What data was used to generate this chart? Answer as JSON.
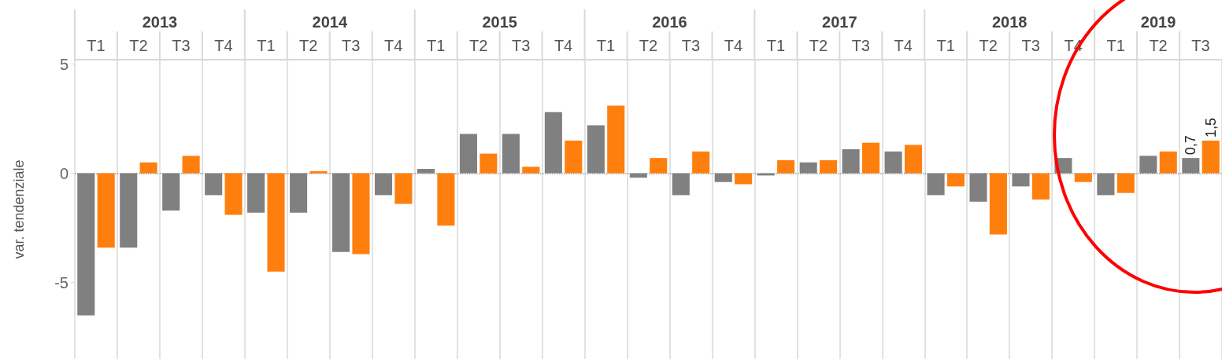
{
  "chart_data": {
    "type": "bar",
    "ylabel": "var. tendenziale",
    "categories": [
      "T1",
      "T2",
      "T3",
      "T4",
      "T1",
      "T2",
      "T3",
      "T4",
      "T1",
      "T2",
      "T3",
      "T4",
      "T1",
      "T2",
      "T3",
      "T4",
      "T1",
      "T2",
      "T3",
      "T4",
      "T1",
      "T2",
      "T3",
      "T4",
      "T1",
      "T2",
      "T3"
    ],
    "annotations": [
      "2013",
      "2014",
      "2015",
      "2016",
      "2017",
      "2018",
      "2019"
    ],
    "series": [
      {
        "color": "#808080",
        "values": [
          -6.5,
          -3.4,
          -1.7,
          -1.0,
          -1.8,
          -1.8,
          -3.6,
          -1.0,
          0.2,
          1.8,
          1.8,
          2.8,
          2.2,
          -0.2,
          -1.0,
          -0.4,
          -0.1,
          0.5,
          1.1,
          1.0,
          -1.0,
          -1.3,
          -0.6,
          0.7,
          -1.0,
          0.8,
          0.7
        ],
        "value_labels": [
          null,
          null,
          null,
          null,
          null,
          null,
          null,
          null,
          null,
          null,
          null,
          null,
          null,
          null,
          null,
          null,
          null,
          null,
          null,
          null,
          null,
          null,
          null,
          null,
          null,
          null,
          "0,7"
        ]
      },
      {
        "color": "#ff7f0e",
        "values": [
          -3.4,
          0.5,
          0.8,
          -1.9,
          -4.5,
          0.1,
          -3.7,
          -1.4,
          -2.4,
          0.9,
          0.3,
          1.5,
          3.1,
          0.7,
          1.0,
          -0.5,
          0.6,
          0.6,
          1.4,
          1.3,
          -0.6,
          -2.8,
          -1.2,
          -0.4,
          -0.9,
          1.0,
          1.5
        ],
        "value_labels": [
          null,
          null,
          null,
          null,
          null,
          null,
          null,
          null,
          null,
          null,
          null,
          null,
          null,
          null,
          null,
          null,
          null,
          null,
          null,
          null,
          null,
          null,
          null,
          null,
          null,
          null,
          "1,5"
        ]
      }
    ],
    "ylim": [
      -8.5,
      5.2
    ],
    "yticks": [
      5,
      0,
      -5
    ],
    "grid": "x",
    "ref_lines": [
      {
        "axis": "y",
        "value": 0,
        "color": "#999999",
        "line_style": "dotted"
      }
    ]
  }
}
